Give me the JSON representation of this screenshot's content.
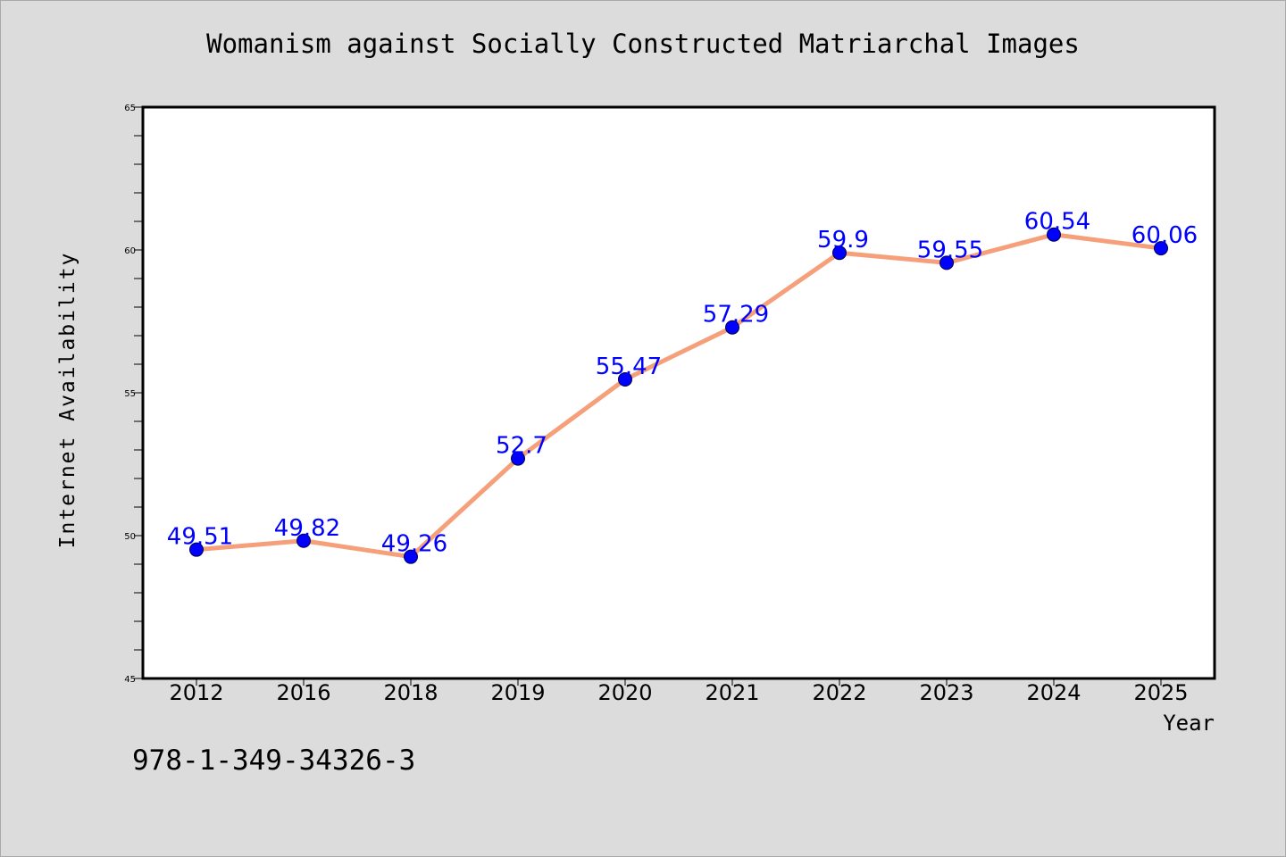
{
  "chart_data": {
    "type": "line",
    "title": "Womanism against Socially Constructed Matriarchal Images",
    "xlabel": "Year",
    "ylabel": "Internet Availability",
    "categories": [
      "2012",
      "2016",
      "2018",
      "2019",
      "2020",
      "2021",
      "2022",
      "2023",
      "2024",
      "2025"
    ],
    "values": [
      49.51,
      49.82,
      49.26,
      52.7,
      55.47,
      57.29,
      59.9,
      59.55,
      60.54,
      60.06
    ],
    "data_labels": [
      "49.51",
      "49.82",
      "49.26",
      "52.7",
      "55.47",
      "57.29",
      "59.9",
      "59.55",
      "60.54",
      "60.06"
    ],
    "ylim": [
      45,
      65
    ],
    "yticks": [
      45,
      50,
      55,
      60,
      65
    ],
    "grid": false,
    "line_color": "#f5a07a",
    "marker_color": "#0000ff",
    "label_color": "#0000ff"
  },
  "footer": {
    "isbn": "978-1-349-34326-3"
  }
}
